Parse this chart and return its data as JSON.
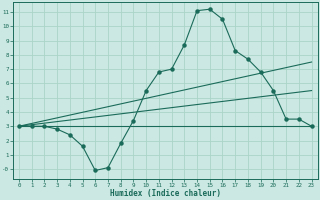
{
  "xlabel": "Humidex (Indice chaleur)",
  "bg_color": "#cce8e2",
  "grid_color": "#aad4c8",
  "line_color": "#1a6b5a",
  "xlim": [
    -0.5,
    23.5
  ],
  "ylim": [
    -0.7,
    11.7
  ],
  "xticks": [
    0,
    1,
    2,
    3,
    4,
    5,
    6,
    7,
    8,
    9,
    10,
    11,
    12,
    13,
    14,
    15,
    16,
    17,
    18,
    19,
    20,
    21,
    22,
    23
  ],
  "yticks": [
    0,
    1,
    2,
    3,
    4,
    5,
    6,
    7,
    8,
    9,
    10,
    11
  ],
  "ytick_labels": [
    "-0",
    "1",
    "2",
    "3",
    "4",
    "5",
    "6",
    "7",
    "8",
    "9",
    "10",
    "11"
  ],
  "main_x": [
    0,
    1,
    2,
    3,
    4,
    5,
    6,
    7,
    8,
    9,
    10,
    11,
    12,
    13,
    14,
    15,
    16,
    17,
    18,
    19,
    20,
    21,
    22,
    23
  ],
  "main_y": [
    3.0,
    3.0,
    3.0,
    2.8,
    2.4,
    1.6,
    -0.1,
    0.1,
    1.8,
    3.4,
    5.5,
    6.8,
    7.0,
    8.7,
    11.1,
    11.2,
    10.5,
    8.3,
    7.7,
    6.8,
    5.5,
    3.5,
    3.5,
    3.0
  ],
  "line1_x": [
    0,
    23
  ],
  "line1_y": [
    3.0,
    3.0
  ],
  "line2_x": [
    0,
    23
  ],
  "line2_y": [
    3.0,
    5.5
  ],
  "line3_x": [
    0,
    23
  ],
  "line3_y": [
    3.0,
    7.5
  ]
}
